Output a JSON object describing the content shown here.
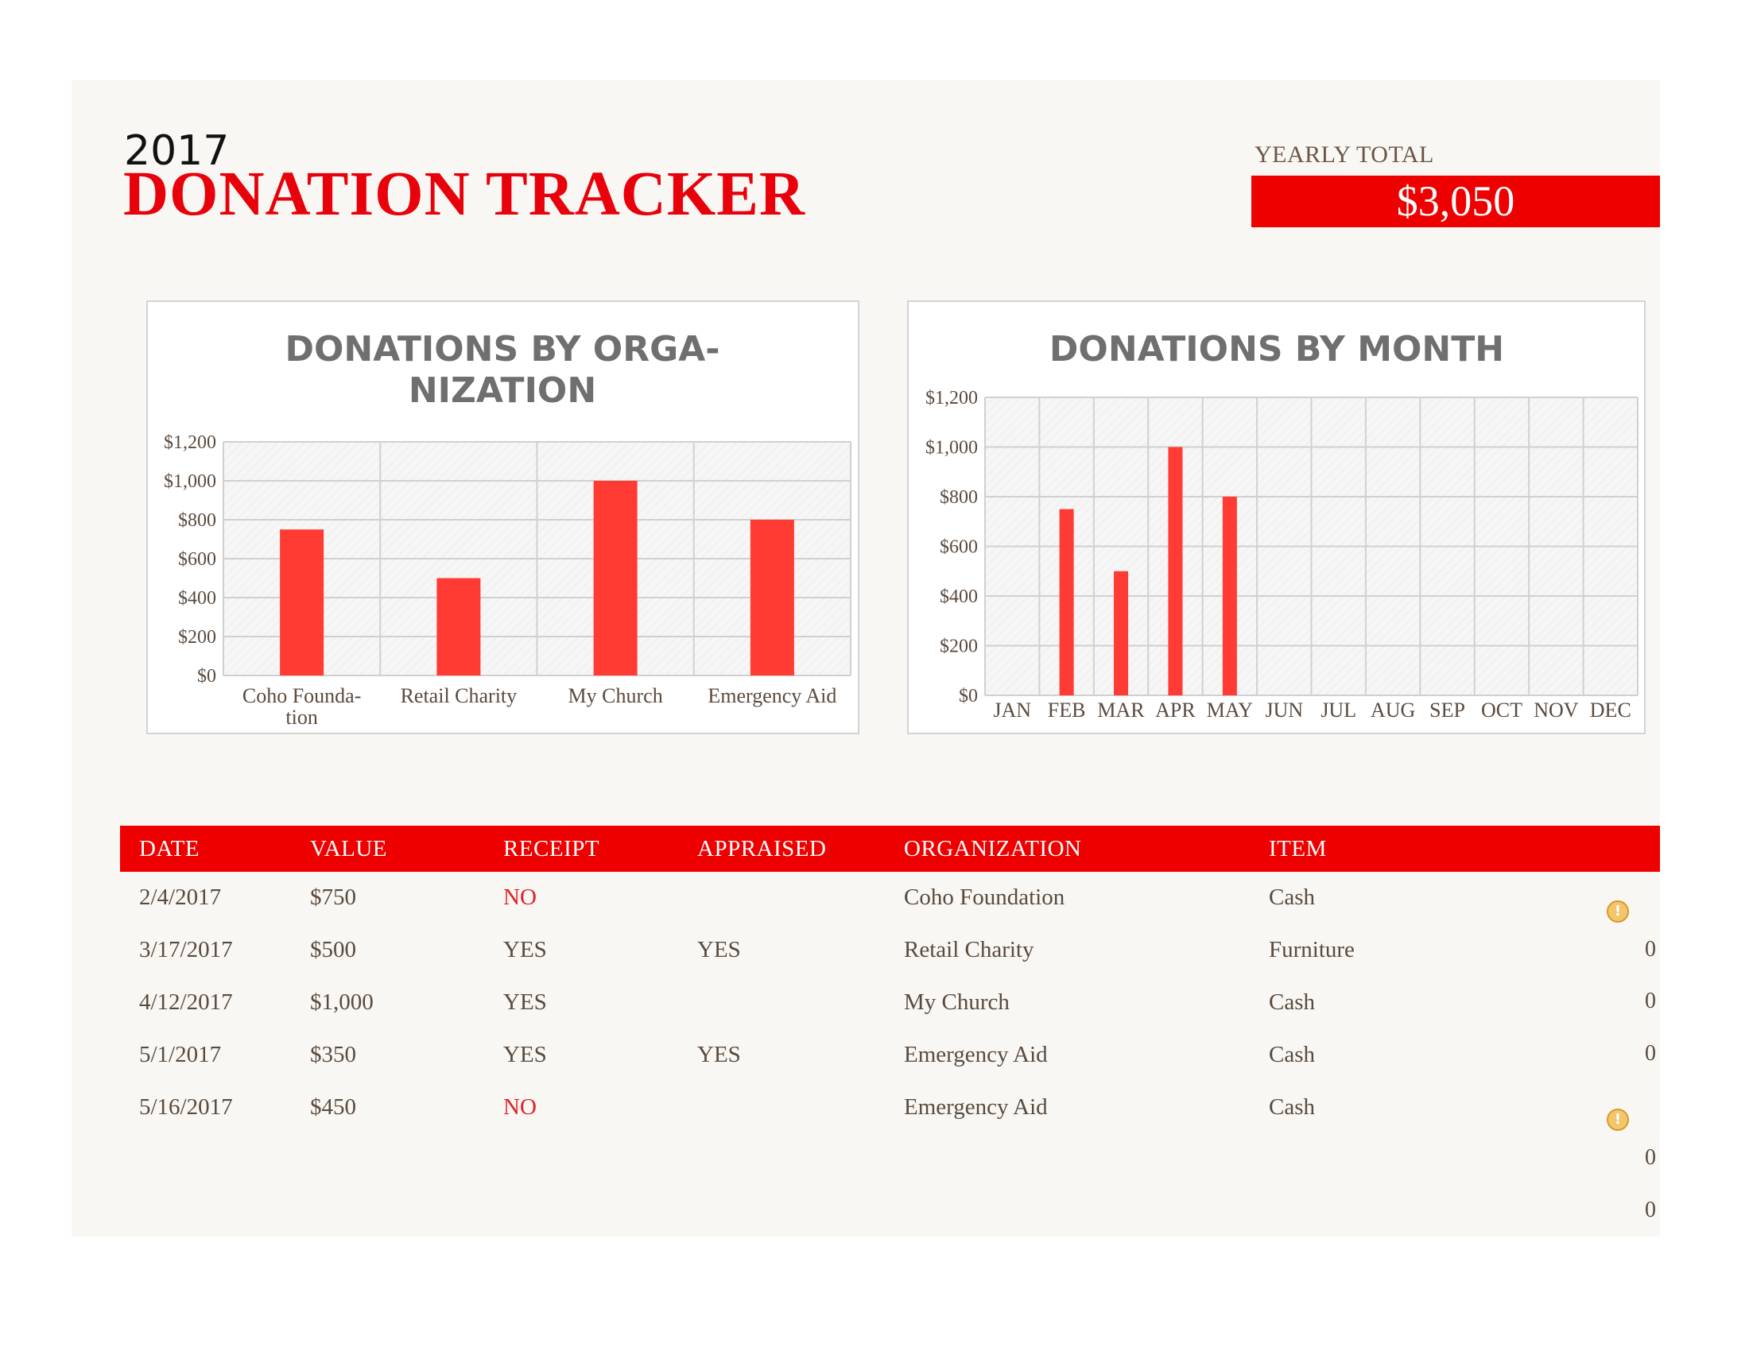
{
  "header": {
    "year": "2017",
    "title": "DONATION TRACKER",
    "yearly_total_label": "YEARLY TOTAL",
    "yearly_total_value": "$3,050"
  },
  "colors": {
    "accent": "#ee0000",
    "bar": "#ff3b33",
    "warning": "#f5c56d"
  },
  "chart_data": [
    {
      "type": "bar",
      "title": [
        "DONATIONS BY ORGA-",
        "NIZATION"
      ],
      "categories": [
        [
          "Coho Founda-",
          "tion"
        ],
        [
          "Retail Charity"
        ],
        [
          "My Church"
        ],
        [
          "Emergency Aid"
        ]
      ],
      "values": [
        750,
        500,
        1000,
        800
      ],
      "ylim": [
        0,
        1200
      ],
      "yticks": [
        "$0",
        "$200",
        "$400",
        "$600",
        "$800",
        "$1,000",
        "$1,200"
      ],
      "grid": true
    },
    {
      "type": "bar",
      "title": [
        "DONATIONS BY MONTH"
      ],
      "categories": [
        [
          "JAN"
        ],
        [
          "FEB"
        ],
        [
          "MAR"
        ],
        [
          "APR"
        ],
        [
          "MAY"
        ],
        [
          "JUN"
        ],
        [
          "JUL"
        ],
        [
          "AUG"
        ],
        [
          "SEP"
        ],
        [
          "OCT"
        ],
        [
          "NOV"
        ],
        [
          "DEC"
        ]
      ],
      "values": [
        0,
        750,
        500,
        1000,
        800,
        0,
        0,
        0,
        0,
        0,
        0,
        0
      ],
      "ylim": [
        0,
        1200
      ],
      "yticks": [
        "$0",
        "$200",
        "$400",
        "$600",
        "$800",
        "$1,000",
        "$1,200"
      ],
      "grid": true
    }
  ],
  "table": {
    "headers": [
      "DATE",
      "VALUE",
      "RECEIPT",
      "APPRAISED",
      "ORGANIZATION",
      "ITEM"
    ],
    "rows": [
      {
        "date": "2/4/2017",
        "value": "$750",
        "receipt": "NO",
        "appraised": "",
        "organization": "Coho Foundation",
        "item": "Cash"
      },
      {
        "date": "3/17/2017",
        "value": "$500",
        "receipt": "YES",
        "appraised": "YES",
        "organization": "Retail Charity",
        "item": "Furniture"
      },
      {
        "date": "4/12/2017",
        "value": "$1,000",
        "receipt": "YES",
        "appraised": "",
        "organization": "My Church",
        "item": "Cash"
      },
      {
        "date": "5/1/2017",
        "value": "$350",
        "receipt": "YES",
        "appraised": "YES",
        "organization": "Emergency Aid",
        "item": "Cash"
      },
      {
        "date": "5/16/2017",
        "value": "$450",
        "receipt": "NO",
        "appraised": "",
        "organization": "Emergency Aid",
        "item": "Cash"
      }
    ],
    "side_indicators": [
      "warning-icon",
      "0",
      "0",
      "0",
      "warning-icon",
      "0",
      "0"
    ],
    "warning_glyph": "!"
  }
}
